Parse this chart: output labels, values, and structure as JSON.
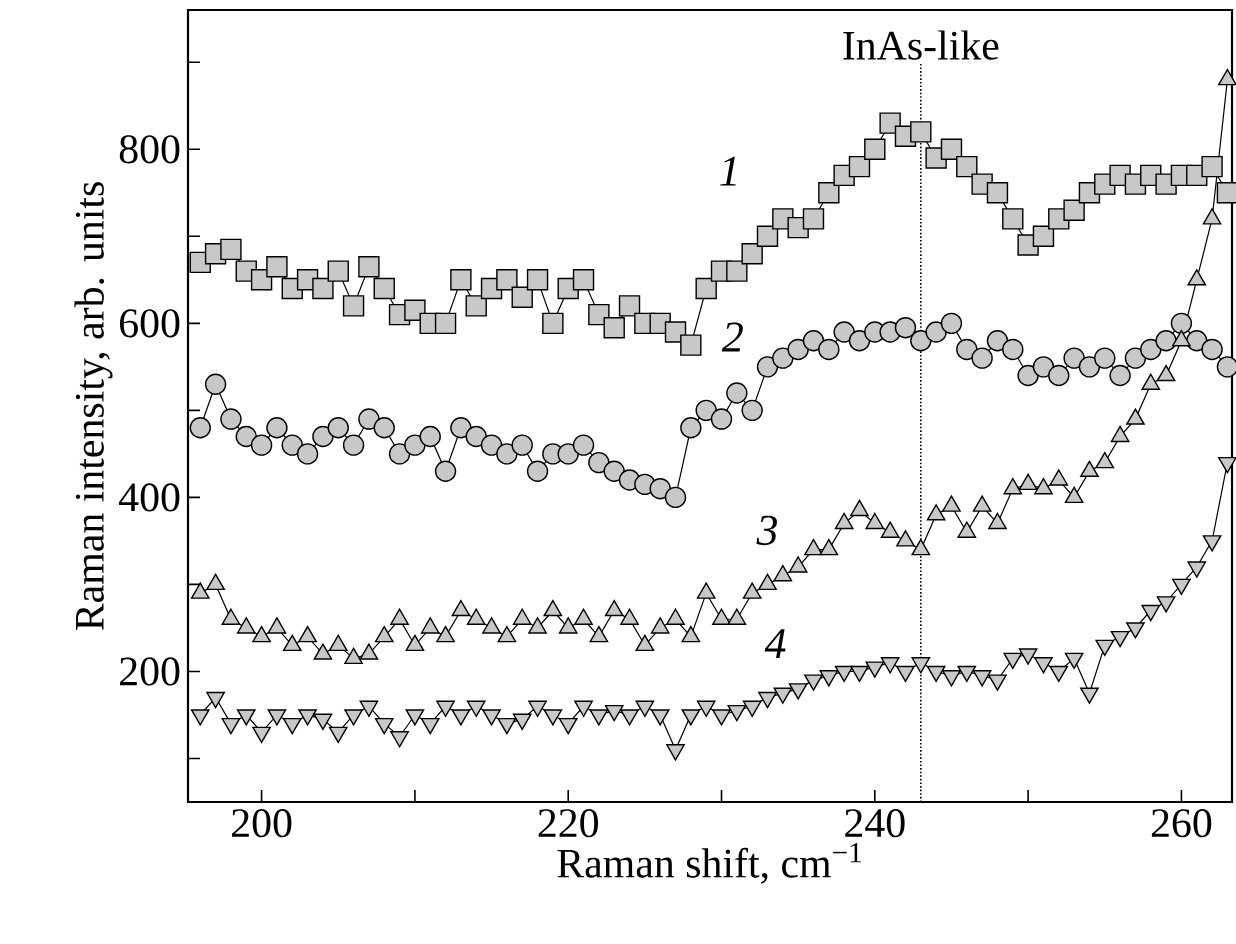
{
  "chart_data": {
    "type": "line",
    "xlabel": "Raman shift, cm$^{−1}$",
    "ylabel": "Raman intensity, arb. units",
    "x": [
      196,
      197,
      198,
      199,
      200,
      201,
      202,
      203,
      204,
      205,
      206,
      207,
      208,
      209,
      210,
      211,
      212,
      213,
      214,
      215,
      216,
      217,
      218,
      219,
      220,
      221,
      222,
      223,
      224,
      225,
      226,
      227,
      228,
      229,
      230,
      231,
      232,
      233,
      234,
      235,
      236,
      237,
      238,
      239,
      240,
      241,
      242,
      243,
      244,
      245,
      246,
      247,
      248,
      249,
      250,
      251,
      252,
      253,
      254,
      255,
      256,
      257,
      258,
      259,
      260,
      261,
      262,
      263
    ],
    "series": [
      {
        "name": "1",
        "color": "#c8c8c8",
        "marker": "square",
        "values": [
          670,
          680,
          685,
          660,
          650,
          665,
          640,
          650,
          640,
          660,
          620,
          665,
          640,
          610,
          615,
          600,
          600,
          650,
          620,
          640,
          650,
          630,
          650,
          600,
          640,
          650,
          610,
          595,
          620,
          600,
          600,
          590,
          575,
          640,
          660,
          660,
          680,
          700,
          720,
          710,
          720,
          750,
          770,
          780,
          800,
          830,
          815,
          820,
          790,
          800,
          780,
          760,
          750,
          720,
          690,
          700,
          720,
          730,
          750,
          760,
          770,
          760,
          770,
          760,
          770,
          770,
          780,
          750
        ]
      },
      {
        "name": "2",
        "color": "#c8c8c8",
        "marker": "circle",
        "values": [
          480,
          530,
          490,
          470,
          460,
          480,
          460,
          450,
          470,
          480,
          460,
          490,
          480,
          450,
          460,
          470,
          430,
          480,
          470,
          460,
          450,
          460,
          430,
          450,
          450,
          460,
          440,
          430,
          420,
          415,
          410,
          400,
          480,
          500,
          490,
          520,
          500,
          550,
          560,
          570,
          580,
          570,
          590,
          580,
          590,
          590,
          595,
          580,
          590,
          600,
          570,
          560,
          580,
          570,
          540,
          550,
          540,
          560,
          550,
          560,
          540,
          560,
          570,
          580,
          600,
          580,
          570,
          550
        ]
      },
      {
        "name": "3",
        "color": "#c8c8c8",
        "marker": "triangle",
        "values": [
          290,
          300,
          260,
          250,
          240,
          250,
          230,
          240,
          220,
          230,
          215,
          220,
          240,
          260,
          230,
          250,
          240,
          270,
          260,
          250,
          240,
          260,
          250,
          270,
          250,
          260,
          240,
          270,
          260,
          230,
          250,
          260,
          240,
          290,
          260,
          260,
          290,
          300,
          310,
          320,
          340,
          340,
          370,
          385,
          370,
          360,
          350,
          340,
          380,
          390,
          360,
          390,
          370,
          410,
          415,
          410,
          420,
          400,
          430,
          440,
          470,
          490,
          530,
          540,
          580,
          650,
          720,
          880
        ]
      },
      {
        "name": "4",
        "color": "#c8c8c8",
        "marker": "triangle-down",
        "values": [
          150,
          170,
          140,
          150,
          130,
          150,
          140,
          150,
          145,
          130,
          150,
          160,
          140,
          125,
          150,
          140,
          160,
          150,
          160,
          150,
          140,
          145,
          160,
          150,
          140,
          160,
          150,
          155,
          150,
          160,
          150,
          110,
          150,
          160,
          150,
          155,
          160,
          170,
          175,
          180,
          190,
          195,
          200,
          200,
          205,
          210,
          200,
          210,
          200,
          195,
          200,
          195,
          190,
          215,
          220,
          210,
          200,
          215,
          175,
          230,
          240,
          250,
          270,
          280,
          300,
          320,
          350,
          440
        ]
      }
    ],
    "line_style": "solid",
    "xlim": [
      195.2,
      263.3
    ],
    "ylim": [
      50,
      960
    ],
    "xticks": [
      200,
      {
        "value": 210,
        "label": null
      },
      220,
      {
        "value": 230,
        "label": null
      },
      240,
      {
        "value": 250,
        "label": null
      },
      260
    ],
    "yticks": [
      {
        "value": 100,
        "label": null
      },
      200,
      {
        "value": 300,
        "label": null
      },
      400,
      {
        "value": 500,
        "label": null
      },
      600,
      {
        "value": 700,
        "label": null
      },
      800,
      {
        "value": 900,
        "label": null
      }
    ],
    "ref_lines": [
      {
        "axis": "x",
        "value": 243,
        "label": "InAs-like",
        "line_style": "dotted",
        "color": "#000000"
      }
    ],
    "grid": false
  }
}
